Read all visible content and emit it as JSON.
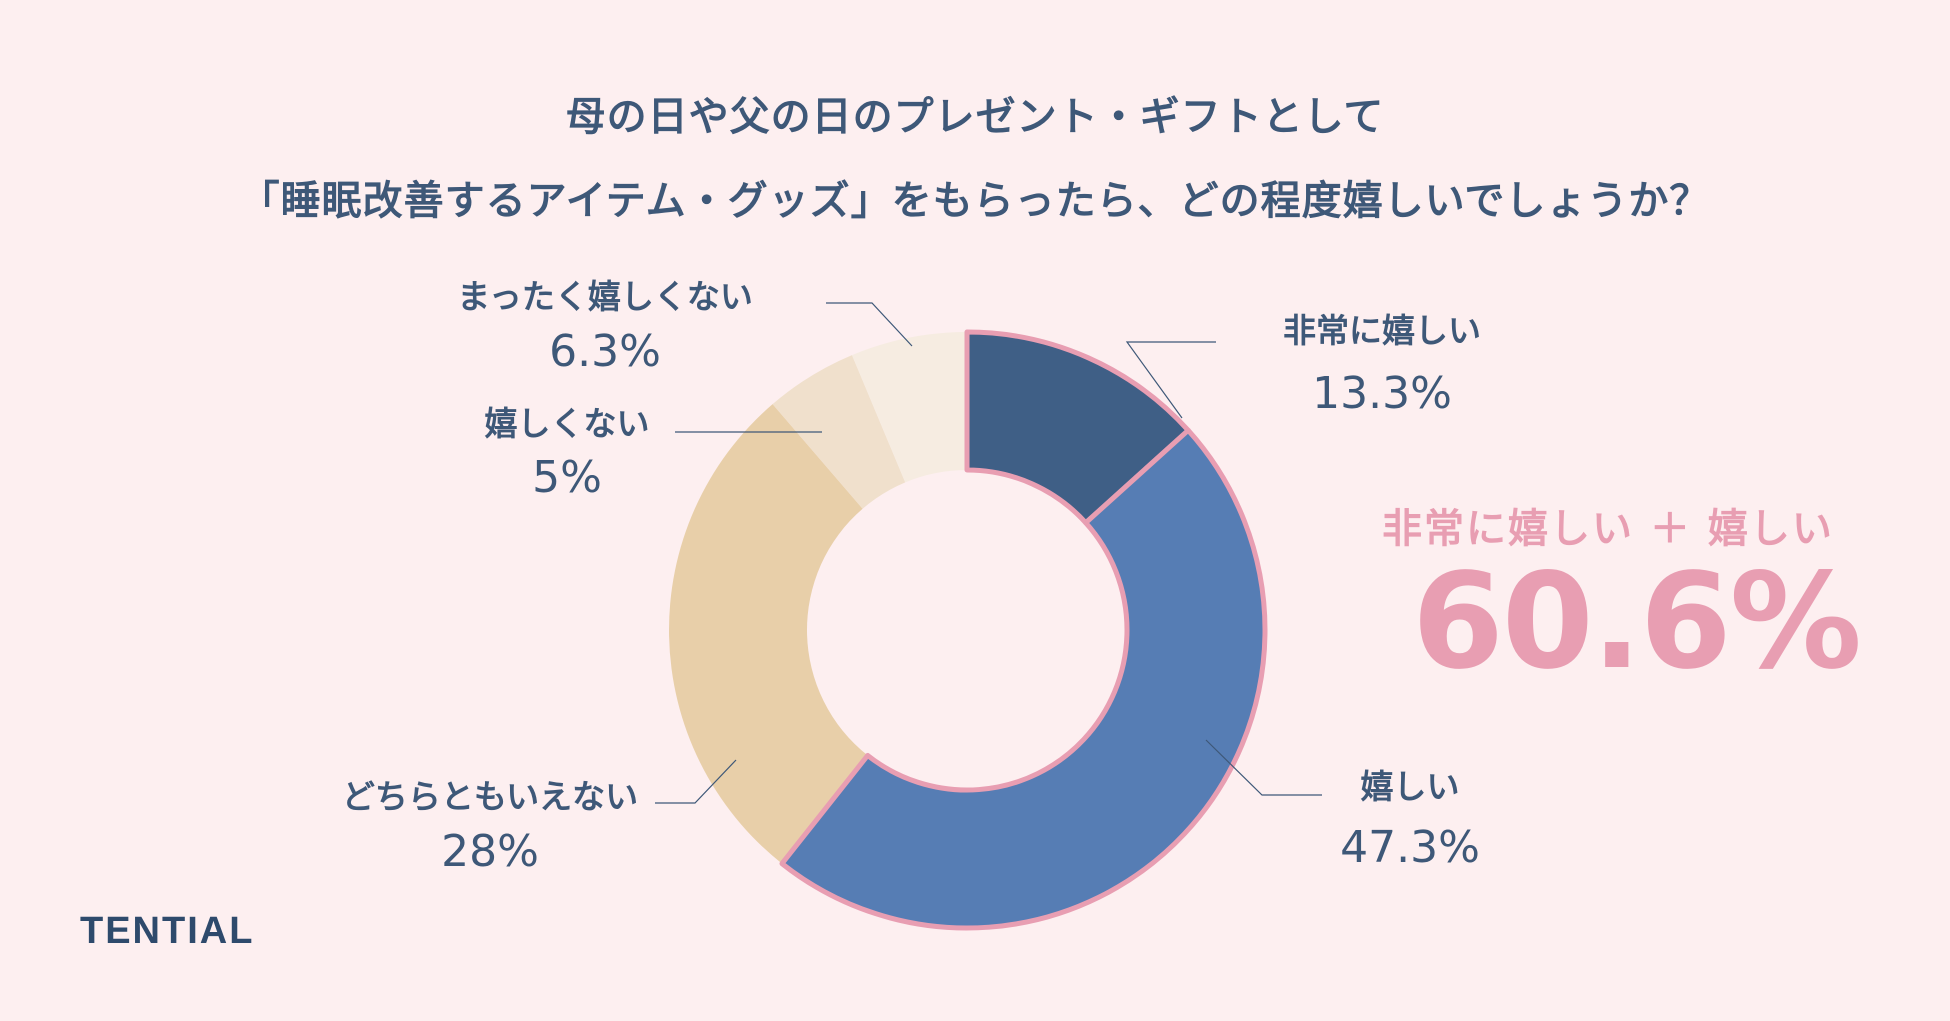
{
  "title": {
    "line1": "母の日や父の日のプレゼント・ギフトとして",
    "line2": "「睡眠改善するアイテム・グッズ」をもらったら、どの程度嬉しいでしょうか？"
  },
  "chart_data": {
    "type": "pie",
    "donut": true,
    "title": "母の日や父の日のプレゼント・ギフトとして「睡眠改善するアイテム・グッズ」をもらったら、どの程度嬉しいでしょうか？",
    "unit": "%",
    "slices": [
      {
        "label": "非常に嬉しい",
        "value": 13.3,
        "value_label": "13.3%",
        "color": "#3f5f86"
      },
      {
        "label": "嬉しい",
        "value": 47.3,
        "value_label": "47.3%",
        "color": "#567db4"
      },
      {
        "label": "どちらともいえない",
        "value": 28,
        "value_label": "28%",
        "color": "#e8cfa9"
      },
      {
        "label": "嬉しくない",
        "value": 5,
        "value_label": "5%",
        "color": "#f0e0cc"
      },
      {
        "label": "まったく嬉しくない",
        "value": 6.3,
        "value_label": "6.3%",
        "color": "#f6ece1"
      }
    ],
    "highlight_border_color": "#e89eb2"
  },
  "highlight": {
    "label": "非常に嬉しい ＋ 嬉しい",
    "value": "60.6%"
  },
  "brand": "TENTIAL"
}
